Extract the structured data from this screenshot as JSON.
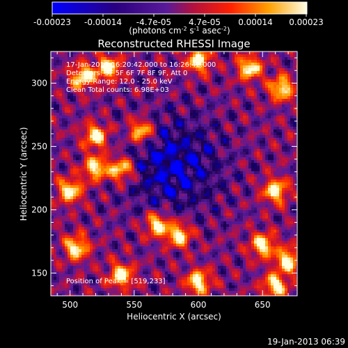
{
  "colorbar": {
    "tick_labels": [
      "-0.00023",
      "-0.00014",
      "-4.7e-05",
      "4.7e-05",
      "0.00014",
      "0.00023"
    ],
    "units_main": "(photons cm",
    "units_sup1": "-2",
    "units_mid": " s",
    "units_sup2": "-1",
    "units_mid2": " asec",
    "units_sup3": "-2",
    "units_end": ")",
    "range": [
      -0.00023,
      0.00023
    ]
  },
  "chart_data": {
    "type": "heatmap",
    "title": "Reconstructed RHESSI Image",
    "xlabel": "Heliocentric X (arcsec)",
    "ylabel": "Heliocentric Y (arcsec)",
    "xlim": [
      485,
      677
    ],
    "ylim": [
      132,
      325
    ],
    "x_ticks": [
      500,
      550,
      600,
      650
    ],
    "y_ticks": [
      150,
      200,
      250,
      300
    ],
    "colormap": [
      "#0000ff",
      "#1a004d",
      "#5a1a9a",
      "#c0103a",
      "#ff3000",
      "#ffa000",
      "#ffffe0"
    ],
    "bright_sources": [
      {
        "x": 510,
        "y": 305
      },
      {
        "x": 530,
        "y": 312
      },
      {
        "x": 600,
        "y": 318
      },
      {
        "x": 640,
        "y": 312
      },
      {
        "x": 665,
        "y": 296
      },
      {
        "x": 520,
        "y": 258
      },
      {
        "x": 555,
        "y": 262
      },
      {
        "x": 540,
        "y": 232
      },
      {
        "x": 500,
        "y": 215
      },
      {
        "x": 520,
        "y": 233
      },
      {
        "x": 660,
        "y": 215
      },
      {
        "x": 568,
        "y": 188
      },
      {
        "x": 585,
        "y": 180
      },
      {
        "x": 505,
        "y": 170
      },
      {
        "x": 650,
        "y": 172
      },
      {
        "x": 670,
        "y": 160
      },
      {
        "x": 660,
        "y": 140
      },
      {
        "x": 600,
        "y": 143
      },
      {
        "x": 540,
        "y": 148
      }
    ],
    "dim_region": {
      "x": 580,
      "y": 235
    },
    "peak": {
      "x": 519,
      "y": 233
    }
  },
  "info": {
    "line1": "17-Jan-2013 16:20:42.000 to 16:26:42.000",
    "line2": "Detectors: 3F 5F 6F 7F 8F 9F, Att 0",
    "line3": "Energy Range: 12.0 - 25.0 keV",
    "line4": "Clean     Total counts: 6.98E+03",
    "peak_text": "Position of Peak = [519,233]"
  },
  "timestamp": "19-Jan-2013 06:39"
}
